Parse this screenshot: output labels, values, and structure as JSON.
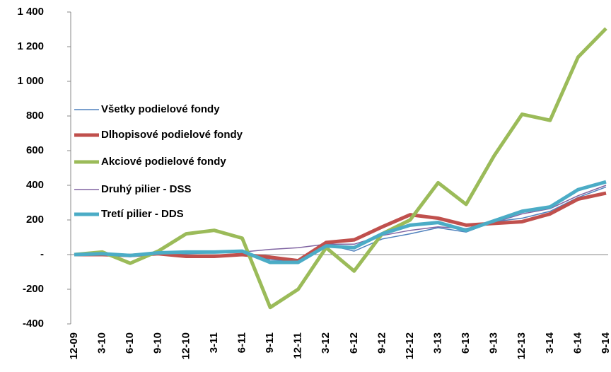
{
  "chart_data": {
    "type": "line",
    "categories": [
      "12-09",
      "3-10",
      "6-10",
      "9-10",
      "12-10",
      "3-11",
      "6-11",
      "9-11",
      "12-11",
      "3-12",
      "6-12",
      "9-12",
      "12-12",
      "3-13",
      "6-13",
      "9-13",
      "12-13",
      "3-14",
      "6-14",
      "9-14"
    ],
    "series": [
      {
        "name": "Všetky podielové fondy",
        "color": "#4f81bd",
        "width": 1.5,
        "values": [
          0,
          0,
          -5,
          5,
          5,
          10,
          15,
          -30,
          -35,
          60,
          20,
          90,
          120,
          155,
          130,
          190,
          210,
          250,
          330,
          390
        ]
      },
      {
        "name": "Dlhopisové podielové fondy",
        "color": "#c0504d",
        "width": 5,
        "values": [
          0,
          0,
          -5,
          5,
          -10,
          -10,
          0,
          -15,
          -35,
          70,
          85,
          160,
          230,
          210,
          170,
          180,
          190,
          235,
          320,
          355
        ]
      },
      {
        "name": "Akciové podielové fondy",
        "color": "#9bbb59",
        "width": 5,
        "values": [
          0,
          15,
          -50,
          20,
          120,
          140,
          95,
          -305,
          -200,
          40,
          -95,
          120,
          200,
          415,
          290,
          570,
          810,
          775,
          1140,
          1305
        ]
      },
      {
        "name": "Druhý pilier - DSS",
        "color": "#8064a2",
        "width": 1.5,
        "values": [
          0,
          0,
          0,
          10,
          10,
          10,
          15,
          30,
          40,
          60,
          60,
          110,
          140,
          160,
          150,
          185,
          235,
          265,
          340,
          400
        ]
      },
      {
        "name": "Tretí pilier - DDS",
        "color": "#4bacc6",
        "width": 5,
        "values": [
          0,
          5,
          -5,
          10,
          15,
          15,
          20,
          -45,
          -45,
          50,
          40,
          120,
          170,
          185,
          140,
          195,
          250,
          275,
          375,
          420
        ]
      }
    ],
    "ylim": [
      -400,
      1400
    ],
    "yticks": [
      -400,
      -200,
      {
        "value": 0,
        "label": "-"
      },
      200,
      400,
      600,
      800,
      {
        "value": 1000,
        "label": "1 000"
      },
      {
        "value": 1200,
        "label": "1 200"
      },
      {
        "value": 1400,
        "label": "1 400"
      }
    ],
    "grid": false,
    "legend": "left"
  }
}
